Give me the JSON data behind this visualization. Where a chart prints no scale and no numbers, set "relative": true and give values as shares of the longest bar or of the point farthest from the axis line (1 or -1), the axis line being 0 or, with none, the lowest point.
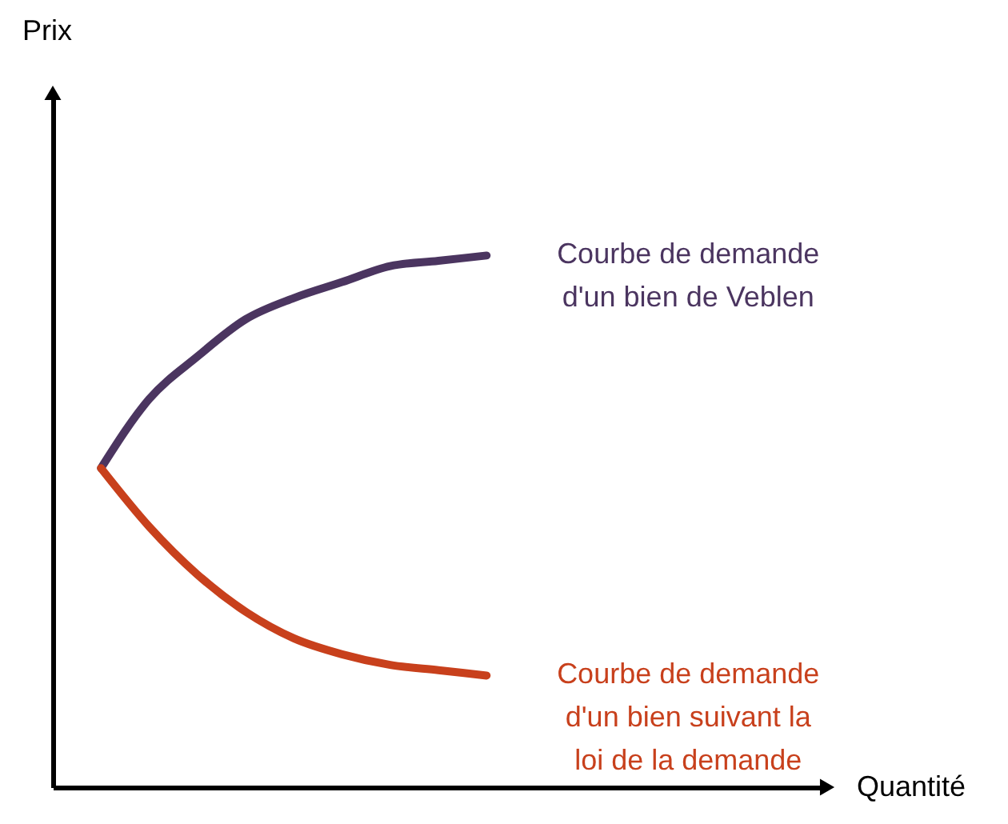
{
  "chart_data": {
    "type": "line",
    "relative": true,
    "xlabel": "Quantité",
    "annotations": [
      "Prix"
    ],
    "categories": [
      null,
      null,
      null,
      null,
      null,
      null,
      null,
      null,
      null,
      null,
      null,
      null,
      null,
      null,
      null,
      null,
      null
    ],
    "series": [
      {
        "name": "Courbe de demande\nd'un bien de Veblen",
        "color": "#4b3560",
        "values": [
          null,
          0.6,
          0.73,
          0.81,
          0.88,
          0.92,
          0.95,
          0.98,
          0.99,
          1.0,
          null,
          null,
          null,
          null,
          null,
          null,
          null
        ]
      },
      {
        "name": "Courbe de demande\nd'un bien suivant la\nloi de la demande",
        "color": "#c8401c",
        "values": [
          null,
          0.6,
          0.49,
          0.4,
          0.33,
          0.28,
          0.25,
          0.23,
          0.22,
          0.21,
          null,
          null,
          null,
          null,
          null,
          null,
          null
        ]
      }
    ]
  }
}
